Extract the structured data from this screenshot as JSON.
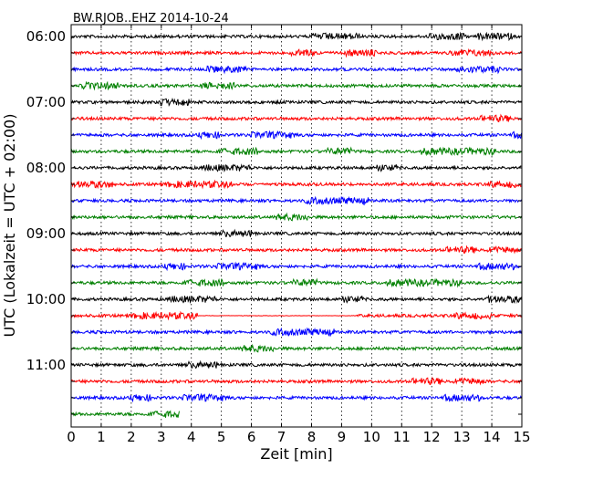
{
  "chart_data": {
    "type": "line",
    "title": "BW.RJOB..EHZ 2014-10-24",
    "xlabel": "Zeit  [min]",
    "ylabel": "UTC (Lokalzeit = UTC + 02:00)",
    "xlim": [
      0,
      15
    ],
    "x_ticks": [
      "0",
      "1",
      "2",
      "3",
      "4",
      "5",
      "6",
      "7",
      "8",
      "9",
      "10",
      "11",
      "12",
      "13",
      "14",
      "15"
    ],
    "y_ticks": [
      "06:00",
      "07:00",
      "08:00",
      "09:00",
      "10:00",
      "11:00"
    ],
    "grid": "vertical dotted",
    "line_colors": [
      "#000000",
      "#ff0000",
      "#0000ff",
      "#008000"
    ],
    "traces": [
      {
        "label": "06:00",
        "start_min": 0,
        "end_min": 15
      },
      {
        "label": "06:15",
        "start_min": 0,
        "end_min": 15
      },
      {
        "label": "06:30",
        "start_min": 0,
        "end_min": 15
      },
      {
        "label": "06:45",
        "start_min": 0,
        "end_min": 15
      },
      {
        "label": "07:00",
        "start_min": 0,
        "end_min": 15
      },
      {
        "label": "07:15",
        "start_min": 0,
        "end_min": 15
      },
      {
        "label": "07:30",
        "start_min": 0,
        "end_min": 15
      },
      {
        "label": "07:45",
        "start_min": 0,
        "end_min": 15
      },
      {
        "label": "08:00",
        "start_min": 0,
        "end_min": 15
      },
      {
        "label": "08:15",
        "start_min": 0,
        "end_min": 15
      },
      {
        "label": "08:30",
        "start_min": 0,
        "end_min": 15
      },
      {
        "label": "08:45",
        "start_min": 0,
        "end_min": 15
      },
      {
        "label": "09:00",
        "start_min": 0,
        "end_min": 15
      },
      {
        "label": "09:15",
        "start_min": 0,
        "end_min": 15
      },
      {
        "label": "09:30",
        "start_min": 0,
        "end_min": 15
      },
      {
        "label": "09:45",
        "start_min": 0,
        "end_min": 15
      },
      {
        "label": "10:00",
        "start_min": 0,
        "end_min": 15
      },
      {
        "label": "10:15",
        "start_min": 0,
        "end_min": 15,
        "quiet_from_min": 4.2,
        "quiet_to_min": 9.5
      },
      {
        "label": "10:30",
        "start_min": 0,
        "end_min": 15
      },
      {
        "label": "10:45",
        "start_min": 0,
        "end_min": 15
      },
      {
        "label": "11:00",
        "start_min": 0,
        "end_min": 15
      },
      {
        "label": "11:15",
        "start_min": 0,
        "end_min": 15
      },
      {
        "label": "11:30",
        "start_min": 0,
        "end_min": 15
      },
      {
        "label": "11:45",
        "start_min": 0,
        "end_min": 3.6
      }
    ]
  }
}
